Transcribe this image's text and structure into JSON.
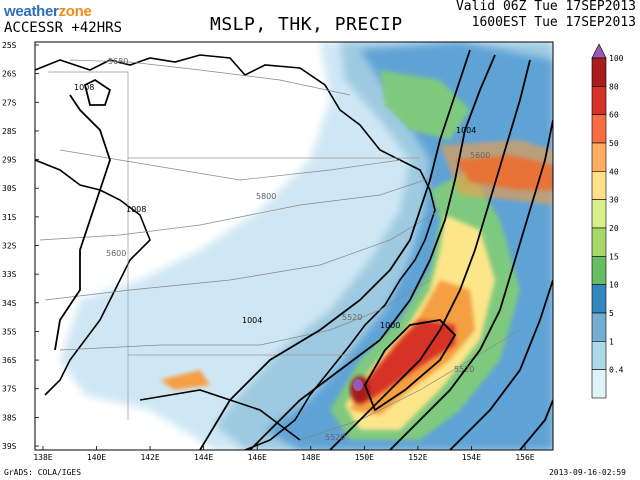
{
  "header": {
    "logo_weather": "weather",
    "logo_zone": "zone",
    "model": "ACCESSR +42HRS",
    "title": "MSLP, THK, PRECIP",
    "valid_line1": "Valid 06Z Tue 17SEP2013",
    "valid_line2": "1600EST Tue 17SEP2013"
  },
  "footer": {
    "credit": "GrADS: COLA/IGES",
    "timestamp": "2013-09-16-02:59"
  },
  "axes": {
    "lat_labels": [
      "25S",
      "26S",
      "27S",
      "28S",
      "29S",
      "30S",
      "31S",
      "32S",
      "33S",
      "34S",
      "35S",
      "36S",
      "37S",
      "38S",
      "39S"
    ],
    "lon_labels": [
      "138E",
      "140E",
      "142E",
      "144E",
      "146E",
      "148E",
      "150E",
      "152E",
      "154E",
      "156E"
    ]
  },
  "colorbar": {
    "labels": [
      "100",
      "80",
      "60",
      "50",
      "40",
      "30",
      "20",
      "15",
      "10",
      "5",
      "1",
      "0.4"
    ],
    "colors": [
      "#9b59b6",
      "#a81c1c",
      "#d73027",
      "#f46d43",
      "#fdae61",
      "#fee08b",
      "#d9ef8b",
      "#a6d96a",
      "#66bd63",
      "#3288bd",
      "#74add1",
      "#abd9e9",
      "#e0f3f8"
    ]
  },
  "contour_labels": {
    "isobars": [
      "1008",
      "1008",
      "1004",
      "1004",
      "1000"
    ],
    "thickness": [
      "5680",
      "5800",
      "5600",
      "5600",
      "5520",
      "5520",
      "5520"
    ]
  }
}
